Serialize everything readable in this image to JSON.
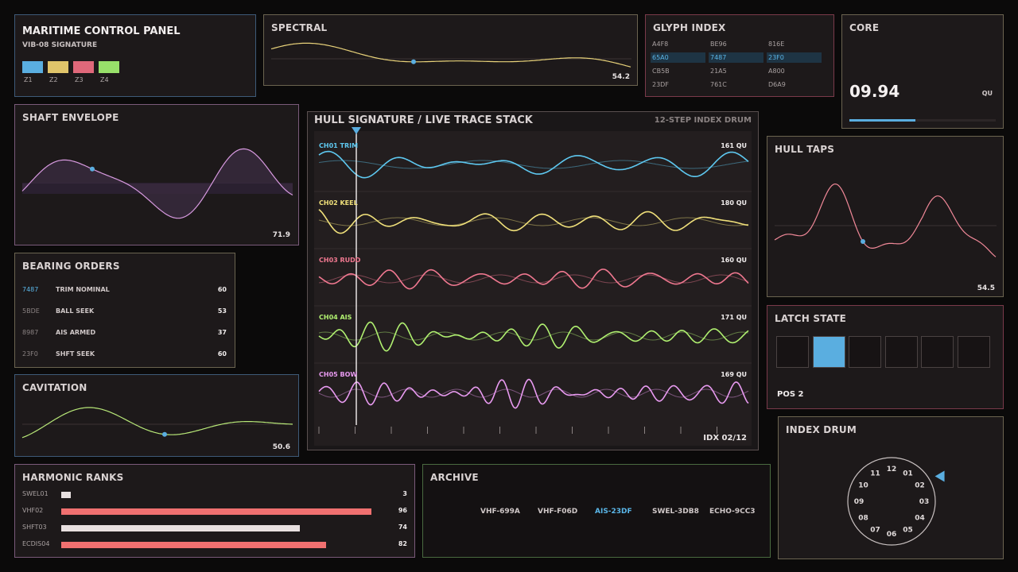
{
  "header": {
    "title": "MARITIME CONTROL PANEL",
    "subtitle": "VIB-08 SIGNATURE",
    "zones": [
      {
        "label": "Z1",
        "color": "#5aaee0"
      },
      {
        "label": "Z2",
        "color": "#e0c46a"
      },
      {
        "label": "Z3",
        "color": "#e0687a"
      },
      {
        "label": "Z4",
        "color": "#98e06a"
      }
    ]
  },
  "spectral": {
    "title": "SPECTRAL",
    "value": "54.2",
    "color": "#e8d27a"
  },
  "glyph_index": {
    "title": "GLYPH INDEX",
    "rows": [
      [
        "A4F8",
        "BE96",
        "816E"
      ],
      [
        "65A0",
        "7487",
        "23F0"
      ],
      [
        "CB5B",
        "21A5",
        "A800"
      ],
      [
        "23DF",
        "761C",
        "D6A9"
      ]
    ],
    "highlight_row": 1
  },
  "core": {
    "title": "CORE",
    "value": "09.94",
    "unit": "QU",
    "level": 0.45
  },
  "shaft_envelope": {
    "title": "SHAFT ENVELOPE",
    "value": "71.9",
    "color": "#d89ae0"
  },
  "hull_signature": {
    "title": "HULL SIGNATURE / LIVE TRACE STACK",
    "subtitle": "12-STEP INDEX DRUM",
    "index_label": "IDX 02/12",
    "channels": [
      {
        "name": "CH01 TRIM",
        "value": "161 QU",
        "color": "#5ec8f0"
      },
      {
        "name": "CH02 KEEL",
        "value": "180 QU",
        "color": "#f0e07a"
      },
      {
        "name": "CH03 RUDD",
        "value": "160 QU",
        "color": "#f07890"
      },
      {
        "name": "CH04 AIS",
        "value": "171 QU",
        "color": "#b0f070"
      },
      {
        "name": "CH05 BOW",
        "value": "169 QU",
        "color": "#e89af0"
      }
    ]
  },
  "hull_taps": {
    "title": "HULL TAPS",
    "value": "54.5",
    "color": "#f08898"
  },
  "bearing_orders": {
    "title": "BEARING ORDERS",
    "rows": [
      {
        "code": "7487",
        "label": "TRIM NOMINAL",
        "value": "60",
        "active": true
      },
      {
        "code": "5BDE",
        "label": "BALL SEEK",
        "value": "53",
        "active": false
      },
      {
        "code": "8987",
        "label": "AIS ARMED",
        "value": "37",
        "active": false
      },
      {
        "code": "23F0",
        "label": "SHFT SEEK",
        "value": "60",
        "active": false
      }
    ]
  },
  "latch_state": {
    "title": "LATCH STATE",
    "position_label": "POS 2",
    "active_index": 1,
    "count": 6
  },
  "cavitation": {
    "title": "CAVITATION",
    "value": "50.6",
    "color": "#b8e878"
  },
  "index_drum": {
    "title": "INDEX DRUM",
    "numbers": [
      "12",
      "01",
      "02",
      "03",
      "04",
      "05",
      "06",
      "07",
      "08",
      "09",
      "10",
      "11"
    ],
    "pointer_at": "02"
  },
  "harmonic_ranks": {
    "title": "HARMONIC RANKS",
    "rows": [
      {
        "label": "SWEL01",
        "value": "3",
        "fraction": 0.03,
        "color": "#e8e0e0"
      },
      {
        "label": "VHF02",
        "value": "96",
        "fraction": 0.96,
        "color": "#f07070"
      },
      {
        "label": "SHFT03",
        "value": "74",
        "fraction": 0.74,
        "color": "#e8e0e0"
      },
      {
        "label": "ECDIS04",
        "value": "82",
        "fraction": 0.82,
        "color": "#f07070"
      }
    ]
  },
  "archive": {
    "title": "ARCHIVE",
    "items": [
      {
        "label": "VHF-699A",
        "active": false
      },
      {
        "label": "VHF-F06D",
        "active": false
      },
      {
        "label": "AIS-23DF",
        "active": true
      },
      {
        "label": "SWEL-3DB8",
        "active": false
      },
      {
        "label": "ECHO-9CC3",
        "active": false
      }
    ]
  }
}
